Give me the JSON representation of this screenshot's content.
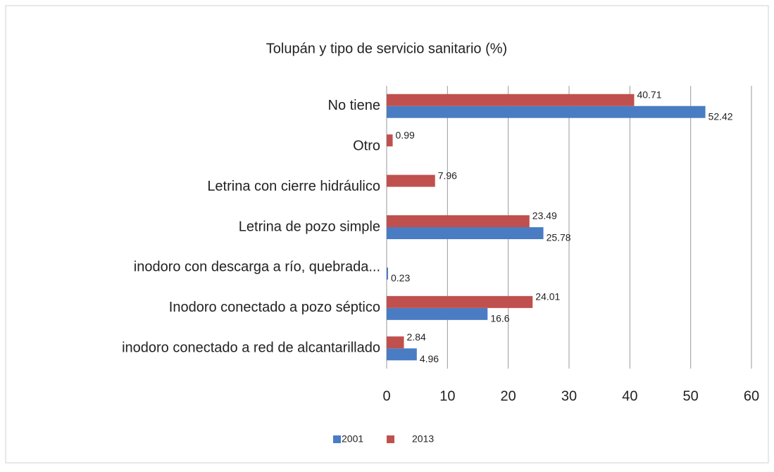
{
  "chart_data": {
    "type": "hbar",
    "title": "Tolupán y tipo de servicio sanitario (%)",
    "categories": [
      "No tiene",
      "Otro",
      "Letrina con cierre hidráulico",
      "Letrina de pozo simple",
      "inodoro con descarga a río, quebrada...",
      "Inodoro conectado a pozo séptico",
      "inodoro conectado a red de alcantarillado"
    ],
    "series": [
      {
        "name": "2001",
        "color": "#4a7cc4",
        "values": [
          52.42,
          null,
          null,
          25.78,
          0.23,
          16.6,
          4.96
        ]
      },
      {
        "name": "2013",
        "color": "#c0504d",
        "values": [
          40.71,
          0.99,
          7.96,
          23.49,
          null,
          24.01,
          2.84
        ]
      }
    ],
    "xlim": [
      0,
      60
    ],
    "xticks": [
      0,
      10,
      20,
      30,
      40,
      50,
      60
    ],
    "grid": true,
    "legend": "bottom"
  }
}
